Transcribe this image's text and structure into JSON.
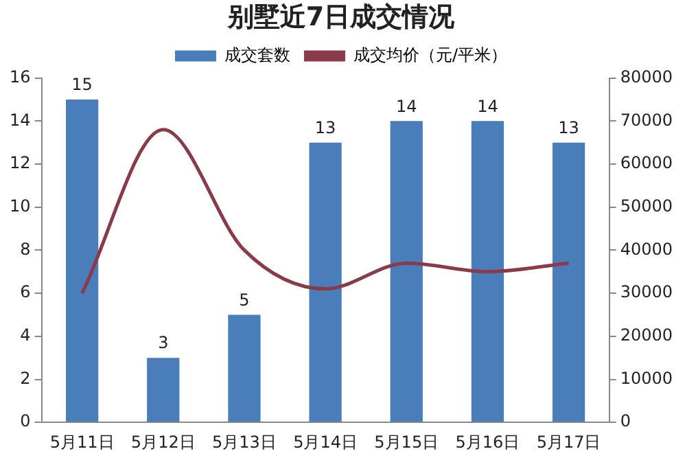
{
  "chart_data": {
    "type": "bar",
    "title": "别墅近7日成交情况",
    "categories": [
      "5月11日",
      "5月12日",
      "5月13日",
      "5月14日",
      "5月15日",
      "5月16日",
      "5月17日"
    ],
    "series": [
      {
        "name": "成交套数",
        "color": "#4a7ebb",
        "values": [
          15,
          3,
          5,
          13,
          14,
          14,
          13
        ],
        "value_labels": [
          "15",
          "3",
          "5",
          "13",
          "14",
          "14",
          "13"
        ]
      },
      {
        "name": "成交均价（元/平米）",
        "type": "line",
        "axis": "y2",
        "color": "#8b3a4a",
        "values": [
          30000,
          68000,
          40000,
          31000,
          37000,
          35000,
          37000
        ]
      }
    ],
    "ylim": [
      0,
      16
    ],
    "yticks": [
      0,
      2,
      4,
      6,
      8,
      10,
      12,
      14,
      16
    ],
    "y2lim": [
      0,
      80000
    ],
    "y2ticks": [
      0,
      10000,
      20000,
      30000,
      40000,
      50000,
      60000,
      70000,
      80000
    ],
    "grid": false,
    "legend": "top",
    "marker": "none",
    "line_style": "solid"
  }
}
